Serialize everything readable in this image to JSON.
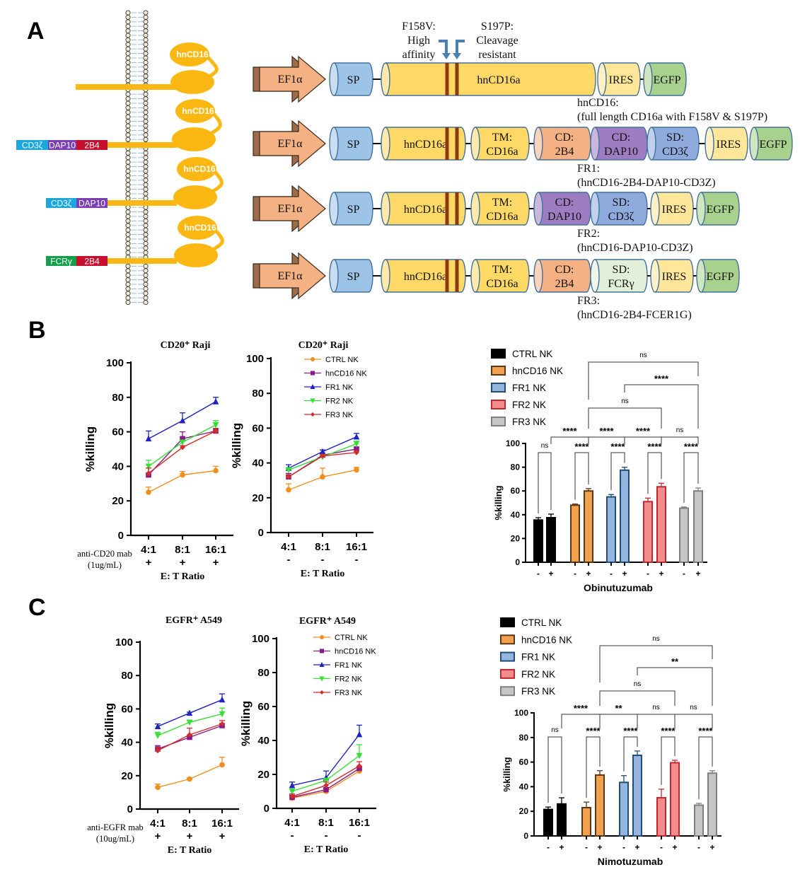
{
  "panel_labels": {
    "a": "A",
    "b": "B",
    "c": "C"
  },
  "diagram": {
    "receptor_label": "hnCD16",
    "receptors": [
      {
        "domains": []
      },
      {
        "domains": [
          {
            "label": "CD3ζ",
            "color": "#1aa7e0"
          },
          {
            "label": "DAP10",
            "color": "#7b3fb5"
          },
          {
            "label": "2B4",
            "color": "#c8102e"
          }
        ]
      },
      {
        "domains": [
          {
            "label": "CD3ζ",
            "color": "#1aa7e0"
          },
          {
            "label": "DAP10",
            "color": "#7b3fb5"
          }
        ]
      },
      {
        "domains": [
          {
            "label": "FCRγ",
            "color": "#14a04a"
          },
          {
            "label": "2B4",
            "color": "#c8102e"
          }
        ]
      }
    ],
    "receptor_color": "#fbb812",
    "mutations": {
      "f158v": [
        "F158V:",
        "High",
        "affinity"
      ],
      "s197p": [
        "S197P:",
        "Cleavage",
        "resistant"
      ]
    },
    "constructs": [
      {
        "promoter": "EF1α",
        "segments": [
          {
            "lines": [
              "SP"
            ],
            "color": "#9dc3e6"
          },
          {
            "lines": [
              "hnCD16a"
            ],
            "color": "#ffd966"
          },
          {
            "lines": [
              "IRES"
            ],
            "color": "#ffe699"
          },
          {
            "lines": [
              "EGFP"
            ],
            "color": "#a9d18e"
          }
        ],
        "caption": [
          "hnCD16:",
          "(full length CD16a with F158V & S197P)"
        ]
      },
      {
        "promoter": "EF1α",
        "segments": [
          {
            "lines": [
              "SP"
            ],
            "color": "#9dc3e6"
          },
          {
            "lines": [
              "hnCD16a"
            ],
            "color": "#ffd966"
          },
          {
            "lines": [
              "TM:",
              "CD16a"
            ],
            "color": "#ffd966"
          },
          {
            "lines": [
              "CD:",
              "2B4"
            ],
            "color": "#f4b183"
          },
          {
            "lines": [
              "CD:",
              "DAP10"
            ],
            "color": "#9e7cc1"
          },
          {
            "lines": [
              "SD:",
              "CD3ζ"
            ],
            "color": "#8faadc"
          },
          {
            "lines": [
              "IRES"
            ],
            "color": "#ffe699"
          },
          {
            "lines": [
              "EGFP"
            ],
            "color": "#a9d18e"
          }
        ],
        "caption": [
          "FR1:",
          "(hnCD16-2B4-DAP10-CD3Z)"
        ]
      },
      {
        "promoter": "EF1α",
        "segments": [
          {
            "lines": [
              "SP"
            ],
            "color": "#9dc3e6"
          },
          {
            "lines": [
              "hnCD16a"
            ],
            "color": "#ffd966"
          },
          {
            "lines": [
              "TM:",
              "CD16a"
            ],
            "color": "#ffd966"
          },
          {
            "lines": [
              "CD:",
              "DAP10"
            ],
            "color": "#9e7cc1"
          },
          {
            "lines": [
              "SD:",
              "CD3ζ"
            ],
            "color": "#8faadc"
          },
          {
            "lines": [
              "IRES"
            ],
            "color": "#ffe699"
          },
          {
            "lines": [
              "EGFP"
            ],
            "color": "#a9d18e"
          }
        ],
        "caption": [
          "FR2:",
          "(hnCD16-DAP10-CD3Z)"
        ]
      },
      {
        "promoter": "EF1α",
        "segments": [
          {
            "lines": [
              "SP"
            ],
            "color": "#9dc3e6"
          },
          {
            "lines": [
              "hnCD16a"
            ],
            "color": "#ffd966"
          },
          {
            "lines": [
              "TM:",
              "CD16a"
            ],
            "color": "#ffd966"
          },
          {
            "lines": [
              "CD:",
              "2B4"
            ],
            "color": "#f4b183"
          },
          {
            "lines": [
              "SD:",
              "FCRγ"
            ],
            "color": "#e2f0d9"
          },
          {
            "lines": [
              "IRES"
            ],
            "color": "#ffe699"
          },
          {
            "lines": [
              "EGFP"
            ],
            "color": "#a9d18e"
          }
        ],
        "caption": [
          "FR3:",
          "(hnCD16-2B4-FCER1G)"
        ]
      }
    ]
  },
  "chart_data": [
    {
      "panel": "B",
      "type": "line",
      "title": "CD20⁺ Raji",
      "categories": [
        "4:1",
        "8:1",
        "16:1"
      ],
      "treatment_label": [
        "anti-CD20 mab",
        "(1ug/mL)"
      ],
      "treatment": [
        "+",
        "+",
        "+"
      ],
      "xlabel": "E: T Ratio",
      "ylabel": "%killing",
      "ylim": [
        0,
        100
      ],
      "yticks": [
        "0",
        "20",
        "40",
        "60",
        "80",
        "100"
      ],
      "legend": "none",
      "grid": false,
      "series": [
        {
          "name": "CTRL NK",
          "values": [
            25,
            35,
            37.5
          ],
          "errors": [
            3,
            2,
            2.5
          ],
          "color": "#f28e1c",
          "marker": "circle"
        },
        {
          "name": "hnCD16 NK",
          "values": [
            35,
            56,
            60.5
          ],
          "errors": [
            4,
            4,
            1.5
          ],
          "color": "#8b1a89",
          "marker": "square"
        },
        {
          "name": "FR1 NK",
          "values": [
            56,
            66.5,
            77.5
          ],
          "errors": [
            4.5,
            4.5,
            2.5
          ],
          "color": "#1f22c4",
          "marker": "triangle-up"
        },
        {
          "name": "FR2 NK",
          "values": [
            40,
            54,
            64
          ],
          "errors": [
            3.5,
            1,
            2.5
          ],
          "color": "#33e133",
          "marker": "triangle-down"
        },
        {
          "name": "FR3 NK",
          "values": [
            36,
            51,
            60.5
          ],
          "errors": [
            3,
            1,
            1.5
          ],
          "color": "#d42a2a",
          "marker": "diamond"
        }
      ]
    },
    {
      "panel": "B",
      "type": "line",
      "title": "CD20⁺ Raji",
      "categories": [
        "4:1",
        "8:1",
        "16:1"
      ],
      "treatment": [
        "-",
        "-",
        "-"
      ],
      "xlabel": "E: T Ratio",
      "ylabel": "%killing",
      "ylim": [
        0,
        100
      ],
      "yticks": [
        "0",
        "20",
        "40",
        "60",
        "80",
        "100"
      ],
      "legend": "top-right",
      "grid": false,
      "series": [
        {
          "name": "CTRL NK",
          "values": [
            24.5,
            32,
            36
          ],
          "errors": [
            3.5,
            5,
            1.5
          ],
          "color": "#f28e1c",
          "marker": "circle"
        },
        {
          "name": "hnCD16 NK",
          "values": [
            32,
            44.5,
            48
          ],
          "errors": [
            2,
            1,
            1
          ],
          "color": "#8b1a89",
          "marker": "square"
        },
        {
          "name": "FR1 NK",
          "values": [
            37,
            46.5,
            55
          ],
          "errors": [
            2,
            1,
            2
          ],
          "color": "#1f22c4",
          "marker": "triangle-up"
        },
        {
          "name": "FR2 NK",
          "values": [
            36,
            43.5,
            51
          ],
          "errors": [
            1,
            1,
            1.5
          ],
          "color": "#33e133",
          "marker": "triangle-down"
        },
        {
          "name": "FR3 NK",
          "values": [
            32,
            44,
            46
          ],
          "errors": [
            1,
            1,
            1
          ],
          "color": "#d42a2a",
          "marker": "diamond"
        }
      ]
    },
    {
      "panel": "C",
      "type": "line",
      "title": "EGFR⁺ A549",
      "categories": [
        "4:1",
        "8:1",
        "16:1"
      ],
      "treatment_label": [
        "anti-EGFR mab",
        "(10ug/mL)"
      ],
      "treatment": [
        "+",
        "+",
        "+"
      ],
      "xlabel": "E: T Ratio",
      "ylabel": "%killing",
      "ylim": [
        0,
        100
      ],
      "yticks": [
        "0",
        "20",
        "40",
        "60",
        "80",
        "100"
      ],
      "legend": "none",
      "grid": false,
      "series": [
        {
          "name": "CTRL NK",
          "values": [
            13,
            18,
            26.5
          ],
          "errors": [
            2,
            0.5,
            4.5
          ],
          "color": "#f28e1c",
          "marker": "circle"
        },
        {
          "name": "hnCD16 NK",
          "values": [
            36,
            43,
            50
          ],
          "errors": [
            2,
            1,
            1
          ],
          "color": "#8b1a89",
          "marker": "square"
        },
        {
          "name": "FR1 NK",
          "values": [
            49.5,
            57.5,
            65.5
          ],
          "errors": [
            1.5,
            0.5,
            3.5
          ],
          "color": "#1f22c4",
          "marker": "triangle-up"
        },
        {
          "name": "FR2 NK",
          "values": [
            44,
            52,
            57
          ],
          "errors": [
            2,
            1,
            3.5
          ],
          "color": "#33e133",
          "marker": "triangle-down"
        },
        {
          "name": "FR3 NK",
          "values": [
            35,
            44.5,
            51
          ],
          "errors": [
            2,
            4,
            2
          ],
          "color": "#d42a2a",
          "marker": "diamond"
        }
      ]
    },
    {
      "panel": "C",
      "type": "line",
      "title": "EGFR⁺ A549",
      "categories": [
        "4:1",
        "8:1",
        "16:1"
      ],
      "treatment": [
        "-",
        "-",
        "-"
      ],
      "xlabel": "E: T Ratio",
      "ylabel": "%killing",
      "ylim": [
        0,
        100
      ],
      "yticks": [
        "0",
        "20",
        "40",
        "60",
        "80",
        "100"
      ],
      "legend": "top-right",
      "grid": false,
      "series": [
        {
          "name": "CTRL NK",
          "values": [
            6,
            10,
            22
          ],
          "errors": [
            1,
            1,
            1
          ],
          "color": "#f28e1c",
          "marker": "circle"
        },
        {
          "name": "hnCD16 NK",
          "values": [
            6.5,
            11,
            23.5
          ],
          "errors": [
            1,
            1,
            1
          ],
          "color": "#8b1a89",
          "marker": "square"
        },
        {
          "name": "FR1 NK",
          "values": [
            13.5,
            18,
            43.5
          ],
          "errors": [
            2,
            4,
            5.5
          ],
          "color": "#1f22c4",
          "marker": "triangle-up"
        },
        {
          "name": "FR2 NK",
          "values": [
            10,
            16.5,
            31
          ],
          "errors": [
            1.5,
            1,
            6.5
          ],
          "color": "#33e133",
          "marker": "triangle-down"
        },
        {
          "name": "FR3 NK",
          "values": [
            7,
            13.5,
            25
          ],
          "errors": [
            1.5,
            2,
            2.5
          ],
          "color": "#d42a2a",
          "marker": "diamond"
        }
      ]
    },
    {
      "panel": "B",
      "type": "bar",
      "xlabel": "Obinutuzumab",
      "ylabel": "%killing",
      "ylim": [
        0,
        100
      ],
      "yticks": [
        "0",
        "20",
        "40",
        "60",
        "80",
        "100"
      ],
      "xtick_labels": [
        "-",
        "+",
        "-",
        "+",
        "-",
        "+",
        "-",
        "+",
        "-",
        "+"
      ],
      "legend": "top-left",
      "grid": false,
      "series": [
        {
          "name": "CTRL NK",
          "values": [
            35.5,
            37.5
          ],
          "errors": [
            2,
            3
          ],
          "fill": "#000000",
          "stroke": "#000000"
        },
        {
          "name": "hnCD16 NK",
          "values": [
            48,
            60
          ],
          "errors": [
            1,
            2
          ],
          "fill": "#f2a24e",
          "stroke": "#5b3716"
        },
        {
          "name": "FR1 NK",
          "values": [
            55,
            77.5
          ],
          "errors": [
            2,
            2.5
          ],
          "fill": "#93b5de",
          "stroke": "#1f4e79"
        },
        {
          "name": "FR2 NK",
          "values": [
            51,
            63.5
          ],
          "errors": [
            3,
            3
          ],
          "fill": "#f38d8d",
          "stroke": "#c1272d"
        },
        {
          "name": "FR3 NK",
          "values": [
            45.5,
            60
          ],
          "errors": [
            1,
            2.5
          ],
          "fill": "#c6c6c6",
          "stroke": "#808080"
        }
      ],
      "comparisons": [
        {
          "from": 0,
          "to": 1,
          "label": "ns"
        },
        {
          "from": 2,
          "to": 3,
          "label": "****"
        },
        {
          "from": 4,
          "to": 5,
          "label": "****"
        },
        {
          "from": 6,
          "to": 7,
          "label": "****"
        },
        {
          "from": 8,
          "to": 9,
          "label": "****"
        },
        {
          "from": 1,
          "to": 3,
          "label": "****"
        },
        {
          "from": 3,
          "to": 5,
          "label": "****"
        },
        {
          "from": 5,
          "to": 7,
          "label": "****"
        },
        {
          "from": 7,
          "to": 9,
          "label": "ns"
        },
        {
          "from": 3,
          "to": 7,
          "label": "ns"
        },
        {
          "from": 5,
          "to": 9,
          "label": "****"
        },
        {
          "from": 3,
          "to": 9,
          "label": "ns"
        }
      ]
    },
    {
      "panel": "C",
      "type": "bar",
      "xlabel": "Nimotuzumab",
      "ylabel": "%killing",
      "ylim": [
        0,
        100
      ],
      "yticks": [
        "0",
        "20",
        "40",
        "60",
        "80",
        "100"
      ],
      "xtick_labels": [
        "-",
        "+",
        "-",
        "+",
        "-",
        "+",
        "-",
        "+",
        "-",
        "+"
      ],
      "legend": "top-left",
      "grid": false,
      "series": [
        {
          "name": "CTRL NK",
          "values": [
            21.5,
            26
          ],
          "errors": [
            2,
            5
          ],
          "fill": "#000000",
          "stroke": "#000000"
        },
        {
          "name": "hnCD16 NK",
          "values": [
            23,
            49.5
          ],
          "errors": [
            4.5,
            3.5
          ],
          "fill": "#f2a24e",
          "stroke": "#5b3716"
        },
        {
          "name": "FR1 NK",
          "values": [
            43.5,
            65.5
          ],
          "errors": [
            5.5,
            3.5
          ],
          "fill": "#93b5de",
          "stroke": "#1f4e79"
        },
        {
          "name": "FR2 NK",
          "values": [
            31,
            59.5
          ],
          "errors": [
            7,
            2
          ],
          "fill": "#f38d8d",
          "stroke": "#c1272d"
        },
        {
          "name": "FR3 NK",
          "values": [
            25,
            51
          ],
          "errors": [
            1.5,
            2
          ],
          "fill": "#c6c6c6",
          "stroke": "#808080"
        }
      ],
      "comparisons": [
        {
          "from": 0,
          "to": 1,
          "label": "ns"
        },
        {
          "from": 2,
          "to": 3,
          "label": "****"
        },
        {
          "from": 4,
          "to": 5,
          "label": "****"
        },
        {
          "from": 6,
          "to": 7,
          "label": "****"
        },
        {
          "from": 8,
          "to": 9,
          "label": "****"
        },
        {
          "from": 1,
          "to": 3,
          "label": "****"
        },
        {
          "from": 3,
          "to": 5,
          "label": "**"
        },
        {
          "from": 5,
          "to": 7,
          "label": "ns"
        },
        {
          "from": 7,
          "to": 9,
          "label": "ns"
        },
        {
          "from": 3,
          "to": 7,
          "label": "ns"
        },
        {
          "from": 5,
          "to": 9,
          "label": "**"
        },
        {
          "from": 3,
          "to": 9,
          "label": "ns"
        }
      ]
    }
  ]
}
